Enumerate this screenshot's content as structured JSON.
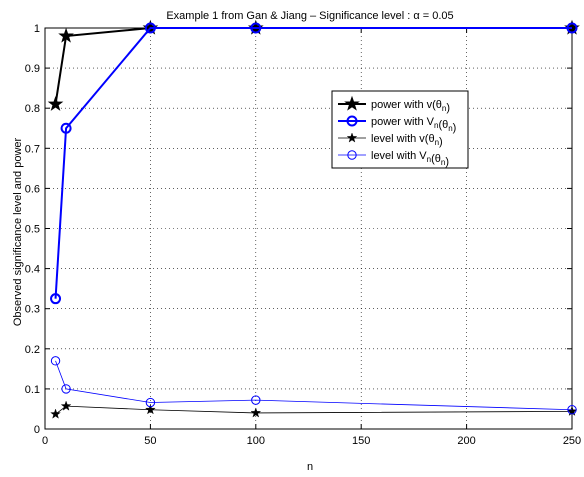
{
  "chart_data": {
    "type": "line",
    "title": "Example 1 from Gan & Jiang – Significance level : α = 0.05",
    "xlabel": "n",
    "ylabel": "Observed significance level and power",
    "xlim": [
      0,
      250
    ],
    "ylim": [
      0,
      1
    ],
    "xticks": [
      0,
      50,
      100,
      150,
      200,
      250
    ],
    "yticks": [
      0,
      0.1,
      0.2,
      0.3,
      0.4,
      0.5,
      0.6,
      0.7,
      0.8,
      0.9,
      1
    ],
    "xtick_labels": [
      "0",
      "50",
      "100",
      "150",
      "200",
      "250"
    ],
    "ytick_labels": [
      "0",
      "0.1",
      "0.2",
      "0.3",
      "0.4",
      "0.5",
      "0.6",
      "0.7",
      "0.8",
      "0.9",
      "1"
    ],
    "grid": true,
    "legend_position": "center-right",
    "series": [
      {
        "legend": {
          "pre": "power with v(θ",
          "sub": "n",
          "post": ")"
        },
        "color": "#000000",
        "marker": "star",
        "line_weight": "thick",
        "x": [
          5,
          10,
          50,
          100,
          250
        ],
        "y": [
          0.81,
          0.98,
          1.0,
          1.0,
          1.0
        ]
      },
      {
        "legend": {
          "pre": "power with V",
          "sub": "n",
          "mid": "(θ",
          "sub2": "n",
          "post": ")"
        },
        "color": "#0000ff",
        "marker": "circle",
        "line_weight": "thick",
        "x": [
          5,
          10,
          50,
          100,
          250
        ],
        "y": [
          0.325,
          0.75,
          1.0,
          1.0,
          1.0
        ]
      },
      {
        "legend": {
          "pre": "level  with v(θ",
          "sub": "n",
          "post": ")"
        },
        "color": "#000000",
        "marker": "star",
        "line_weight": "thin",
        "x": [
          5,
          10,
          50,
          100,
          250
        ],
        "y": [
          0.037,
          0.057,
          0.048,
          0.04,
          0.044
        ]
      },
      {
        "legend": {
          "pre": "level  with V",
          "sub": "n",
          "mid": "(θ",
          "sub2": "n",
          "post": ")"
        },
        "color": "#0000ff",
        "marker": "circle",
        "line_weight": "thin",
        "x": [
          5,
          10,
          50,
          100,
          250
        ],
        "y": [
          0.17,
          0.1,
          0.066,
          0.072,
          0.048
        ]
      }
    ]
  }
}
